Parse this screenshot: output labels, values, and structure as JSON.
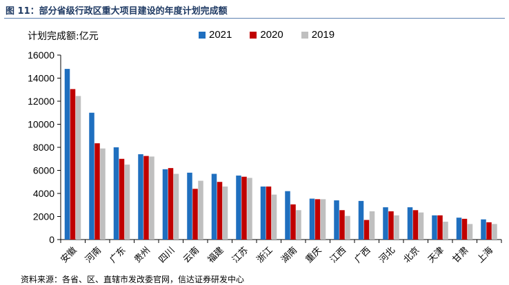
{
  "title": "图 11：部分省级行政区重大项目建设的年度计划完成额",
  "source": "资料来源：各省、区、直辖市发改委官网，信达证券研发中心",
  "chart_data": {
    "type": "bar",
    "ylabel": "计划完成额:亿元",
    "xlabel": "",
    "ylim": [
      0,
      16000
    ],
    "yticks": [
      0,
      2000,
      4000,
      6000,
      8000,
      10000,
      12000,
      14000,
      16000
    ],
    "legend_position": "top",
    "grid": false,
    "categories": [
      "安徽",
      "河南",
      "广东",
      "贵州",
      "四川",
      "云南",
      "福建",
      "江苏",
      "浙江",
      "湖南",
      "重庆",
      "江西",
      "广西",
      "河北",
      "北京",
      "天津",
      "甘肃",
      "上海"
    ],
    "series": [
      {
        "name": "2021",
        "color": "#1f6fbf",
        "values": [
          14800,
          11000,
          8000,
          7400,
          6100,
          5800,
          5700,
          5550,
          4600,
          4200,
          3550,
          3400,
          3350,
          2800,
          2800,
          2100,
          1900,
          1750
        ]
      },
      {
        "name": "2020",
        "color": "#c00000",
        "values": [
          13050,
          8350,
          7000,
          7250,
          6200,
          4400,
          5000,
          5450,
          4600,
          3050,
          3500,
          2550,
          1700,
          2450,
          2550,
          2100,
          1800,
          1500
        ]
      },
      {
        "name": "2019",
        "color": "#bfbfbf",
        "values": [
          12450,
          7900,
          6500,
          7200,
          5700,
          5100,
          4600,
          5350,
          3900,
          2550,
          3500,
          2050,
          2450,
          2100,
          2350,
          1550,
          1350,
          1350
        ]
      }
    ]
  }
}
